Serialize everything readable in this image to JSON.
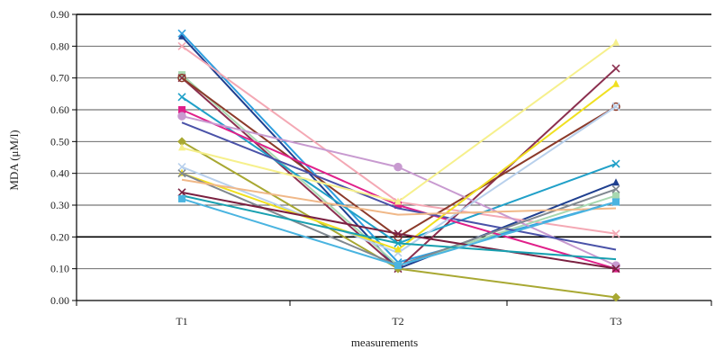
{
  "chart_data": {
    "type": "line",
    "title": "",
    "xlabel": "measurements",
    "ylabel": "MDA (μM/l)",
    "categories": [
      "T1",
      "T2",
      "T3"
    ],
    "ylim": [
      0,
      0.9
    ],
    "yticks": [
      0.0,
      0.1,
      0.2,
      0.3,
      0.4,
      0.5,
      0.6,
      0.7,
      0.8,
      0.9
    ],
    "grid": "horizontal",
    "legend": "none",
    "series": [
      {
        "values": [
          0.83,
          0.1,
          0.37
        ],
        "color": "#1f3f8f",
        "marker": "triangle"
      },
      {
        "values": [
          0.84,
          0.12,
          0.31
        ],
        "color": "#2f9fdf",
        "marker": "x"
      },
      {
        "values": [
          0.8,
          0.31,
          0.21
        ],
        "color": "#f4a8b4",
        "marker": "x"
      },
      {
        "values": [
          0.71,
          0.11,
          0.33
        ],
        "color": "#a8d8b0",
        "marker": "square"
      },
      {
        "values": [
          0.7,
          0.1,
          0.73
        ],
        "color": "#8b2f4f",
        "marker": "x"
      },
      {
        "values": [
          0.7,
          0.2,
          0.61
        ],
        "color": "#8b3a2a",
        "marker": "circle"
      },
      {
        "values": [
          0.64,
          0.18,
          0.43
        ],
        "color": "#20a0c8",
        "marker": "x"
      },
      {
        "values": [
          0.6,
          0.3,
          0.1
        ],
        "color": "#e0208a",
        "marker": "square"
      },
      {
        "values": [
          0.58,
          0.42,
          0.11
        ],
        "color": "#c89ad0",
        "marker": "circle"
      },
      {
        "values": [
          0.56,
          0.29,
          0.16
        ],
        "color": "#4a52a8",
        "marker": "none"
      },
      {
        "values": [
          0.5,
          0.1,
          0.01
        ],
        "color": "#a8a832",
        "marker": "diamond"
      },
      {
        "values": [
          0.48,
          0.31,
          0.81
        ],
        "color": "#f6f08c",
        "marker": "triangle"
      },
      {
        "values": [
          0.42,
          0.15,
          0.61
        ],
        "color": "#b8d0ec",
        "marker": "x"
      },
      {
        "values": [
          0.4,
          0.16,
          0.68
        ],
        "color": "#f0e020",
        "marker": "triangle"
      },
      {
        "values": [
          0.4,
          0.11,
          0.35
        ],
        "color": "#808890",
        "marker": "x"
      },
      {
        "values": [
          0.38,
          0.27,
          0.29
        ],
        "color": "#f0b888",
        "marker": "none"
      },
      {
        "values": [
          0.34,
          0.21,
          0.1
        ],
        "color": "#7a2040",
        "marker": "x"
      },
      {
        "values": [
          0.33,
          0.18,
          0.13
        ],
        "color": "#18a0b0",
        "marker": "none"
      },
      {
        "values": [
          0.32,
          0.11,
          0.31
        ],
        "color": "#4ab4e0",
        "marker": "square"
      }
    ]
  }
}
